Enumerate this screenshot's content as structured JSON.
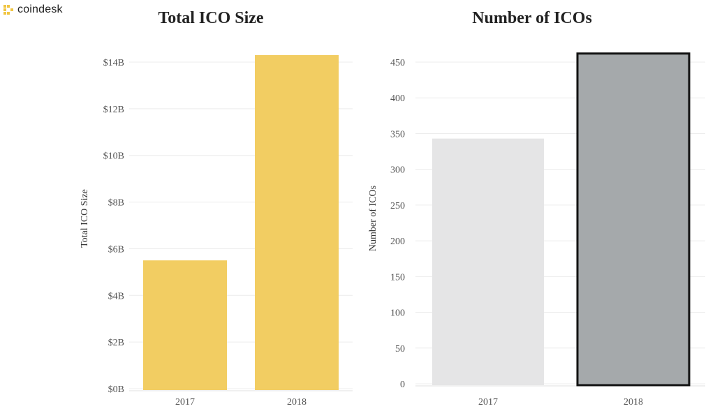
{
  "brand": {
    "name": "coindesk",
    "logo_icon": "coindesk-logo-icon",
    "accent": "#f0c542"
  },
  "chart_data": [
    {
      "type": "bar",
      "title": "Total ICO Size",
      "xlabel": "",
      "ylabel": "Total ICO Size",
      "categories": [
        "2017",
        "2018"
      ],
      "values": [
        5.5,
        14.3
      ],
      "unit": "billions USD",
      "ylim": [
        0,
        14
      ],
      "yticks": [
        0,
        2,
        4,
        6,
        8,
        10,
        12,
        14
      ],
      "ytick_labels": [
        "$0B",
        "$2B",
        "$4B",
        "$6B",
        "$8B",
        "$10B",
        "$12B",
        "$14B"
      ],
      "colors": [
        "#f2cd62",
        "#f2cd62"
      ],
      "grid": true
    },
    {
      "type": "bar",
      "title": "Number of ICOs",
      "xlabel": "",
      "ylabel": "Number of ICOs",
      "categories": [
        "2017",
        "2018"
      ],
      "values": [
        343,
        462
      ],
      "ylim": [
        0,
        450
      ],
      "yticks": [
        0,
        50,
        100,
        150,
        200,
        250,
        300,
        350,
        400,
        450
      ],
      "ytick_labels": [
        "0",
        "50",
        "100",
        "150",
        "200",
        "250",
        "300",
        "350",
        "400",
        "450"
      ],
      "colors": [
        "#e5e5e6",
        "#a5a9ab"
      ],
      "highlight": "2018",
      "grid": true
    }
  ]
}
